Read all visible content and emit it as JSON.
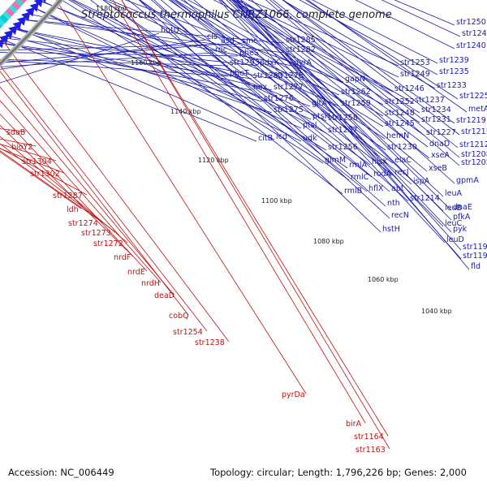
{
  "title": "Streptococcus thermophilus CNRZ1066, complete genome",
  "footer": {
    "accession": "Accession: NC_006449",
    "summary": "Topology: circular; Length: 1,796,226 bp; Genes: 2,000"
  },
  "ticks": [
    "1180 kbp",
    "1160 kbp",
    "1140 kbp",
    "1120 kbp",
    "1100 kbp",
    "1080 kbp",
    "1060 kbp",
    "1040 kbp"
  ],
  "colors": {
    "forward_labels": "#1a1aa8",
    "reverse_labels": "#c01010",
    "forward_arrows": "#1f1fe0",
    "reverse_arrows": "#ee1111",
    "backbone": "#777777",
    "dots": "#2e8b2e"
  },
  "blue_labels": [
    "hutU",
    "cls",
    "asd",
    "rnc",
    "smc",
    "pheS",
    "str1285",
    "str1293",
    "pdxK",
    "str1282",
    "pheT",
    "str1283",
    "gyrA",
    "str1278",
    "nox",
    "str1277",
    "str1276",
    "str1275",
    "gltA",
    "gapN",
    "str1262",
    "ptsH",
    "str1259",
    "str1258",
    "ptsI",
    "udk",
    "str1257",
    "citB",
    "icd",
    "str1256",
    "glmM",
    "rmlA",
    "rmlC",
    "rmlB",
    "str1253",
    "str1249",
    "str1246",
    "str1252",
    "str1248",
    "str1245",
    "hemN",
    "str1230",
    "hisK",
    "elaC",
    "recJ",
    "rodA",
    "hflX",
    "apt",
    "nth",
    "recN",
    "hstH",
    "str1250",
    "str1241",
    "str1240",
    "str1239",
    "str1235",
    "str1233",
    "str1237",
    "str1234",
    "str1231",
    "str1227",
    "dnaD",
    "xseA",
    "xseB",
    "ispA",
    "str1214",
    "leuA",
    "leuB",
    "leuC",
    "leuD",
    "str1225",
    "metA",
    "str1219",
    "str1215",
    "str1212",
    "str1208",
    "str1205",
    "gpmA",
    "dnaE",
    "pfkA",
    "pyk",
    "str1195",
    "str1191",
    "fld"
  ],
  "red_labels": [
    "sdaB",
    "bioY2",
    "str1304",
    "str1302",
    "str1287",
    "ldh",
    "str1274",
    "str1273",
    "str1272",
    "nrdF",
    "nrdE",
    "nrdH",
    "deaD",
    "cobQ",
    "str1254",
    "str1238",
    "pyrDa",
    "birA",
    "str1164",
    "str1163"
  ]
}
